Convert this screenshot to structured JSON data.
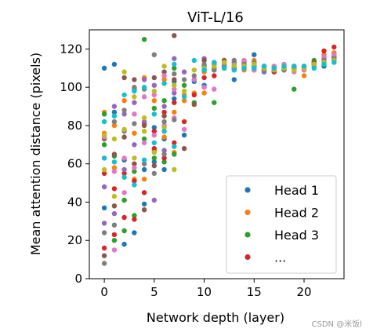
{
  "chart_data": {
    "type": "scatter",
    "title": "ViT-L/16",
    "xlabel": "Network depth (layer)",
    "ylabel": "Mean attention distance (pixels)",
    "xlim": [
      -1.5,
      24.0
    ],
    "ylim": [
      0,
      130
    ],
    "x_ticks": [
      0,
      5,
      10,
      15,
      20
    ],
    "y_ticks": [
      0,
      20,
      40,
      60,
      80,
      100,
      120
    ],
    "grid": false,
    "legend_position": "lower-right",
    "legend": [
      "Head 1",
      "Head 2",
      "Head 3",
      "..."
    ],
    "palette": [
      "#1f77b4",
      "#ff7f0e",
      "#2ca02c",
      "#d62728",
      "#9467bd",
      "#8c564b",
      "#e377c2",
      "#7f7f7f",
      "#bcbd22",
      "#17becf"
    ],
    "series": [
      {
        "name": "Head 1",
        "color": "#1f77b4",
        "points": [
          [
            0,
            110
          ],
          [
            0,
            37
          ],
          [
            1,
            112
          ],
          [
            1,
            87
          ],
          [
            2,
            62
          ],
          [
            2,
            18
          ],
          [
            3,
            99
          ],
          [
            3,
            24
          ],
          [
            4,
            57
          ],
          [
            4,
            39
          ],
          [
            5,
            61
          ],
          [
            5,
            79
          ],
          [
            6,
            73
          ],
          [
            6,
            57
          ],
          [
            7,
            103
          ],
          [
            7,
            94
          ],
          [
            8,
            75
          ],
          [
            9,
            103
          ],
          [
            10,
            111
          ],
          [
            10,
            101
          ],
          [
            11,
            109
          ],
          [
            12,
            110
          ],
          [
            13,
            104
          ],
          [
            14,
            112
          ],
          [
            15,
            117
          ],
          [
            15,
            111
          ],
          [
            16,
            109
          ],
          [
            17,
            108
          ],
          [
            18,
            109
          ],
          [
            19,
            110
          ],
          [
            20,
            109
          ],
          [
            21,
            113
          ],
          [
            22,
            111
          ],
          [
            23,
            118
          ],
          [
            23,
            114
          ]
        ]
      },
      {
        "name": "Head 2",
        "color": "#ff7f0e",
        "points": [
          [
            0,
            87
          ],
          [
            0,
            76
          ],
          [
            1,
            80
          ],
          [
            1,
            58
          ],
          [
            2,
            93
          ],
          [
            2,
            41
          ],
          [
            3,
            52
          ],
          [
            3,
            76
          ],
          [
            4,
            105
          ],
          [
            4,
            52
          ],
          [
            5,
            93
          ],
          [
            5,
            67
          ],
          [
            6,
            104
          ],
          [
            6,
            74
          ],
          [
            7,
            87
          ],
          [
            7,
            66
          ],
          [
            8,
            93
          ],
          [
            8,
            96
          ],
          [
            9,
            97
          ],
          [
            10,
            108
          ],
          [
            10,
            97
          ],
          [
            11,
            113
          ],
          [
            12,
            114
          ],
          [
            13,
            111
          ],
          [
            14,
            109
          ],
          [
            15,
            114
          ],
          [
            16,
            110
          ],
          [
            17,
            109
          ],
          [
            18,
            110
          ],
          [
            19,
            111
          ],
          [
            20,
            106
          ],
          [
            21,
            112
          ],
          [
            22,
            117
          ],
          [
            23,
            114
          ],
          [
            23,
            118
          ]
        ]
      },
      {
        "name": "Head 3",
        "color": "#2ca02c",
        "points": [
          [
            0,
            86
          ],
          [
            0,
            70
          ],
          [
            1,
            20
          ],
          [
            1,
            64
          ],
          [
            2,
            25
          ],
          [
            2,
            41
          ],
          [
            3,
            33
          ],
          [
            3,
            56
          ],
          [
            4,
            125
          ],
          [
            4,
            73
          ],
          [
            5,
            63
          ],
          [
            5,
            89
          ],
          [
            6,
            61
          ],
          [
            6,
            93
          ],
          [
            7,
            65
          ],
          [
            7,
            110
          ],
          [
            8,
            101
          ],
          [
            9,
            92
          ],
          [
            10,
            109
          ],
          [
            11,
            92
          ],
          [
            12,
            111
          ],
          [
            13,
            113
          ],
          [
            14,
            110
          ],
          [
            15,
            112
          ],
          [
            16,
            108
          ],
          [
            17,
            110
          ],
          [
            18,
            111
          ],
          [
            19,
            99
          ],
          [
            20,
            110
          ],
          [
            21,
            114
          ],
          [
            22,
            112
          ],
          [
            23,
            115
          ]
        ]
      },
      {
        "name": "...",
        "color": "#d62728",
        "points": [
          [
            0,
            16
          ],
          [
            0,
            55
          ],
          [
            1,
            23
          ],
          [
            1,
            47
          ],
          [
            2,
            32
          ],
          [
            2,
            55
          ],
          [
            3,
            31
          ],
          [
            3,
            51
          ],
          [
            4,
            45
          ],
          [
            4,
            81
          ],
          [
            5,
            68
          ],
          [
            5,
            77
          ],
          [
            6,
            63
          ],
          [
            6,
            87
          ],
          [
            7,
            71
          ],
          [
            7,
            92
          ],
          [
            8,
            82
          ],
          [
            9,
            96
          ],
          [
            10,
            105
          ],
          [
            11,
            106
          ],
          [
            12,
            112
          ],
          [
            13,
            110
          ],
          [
            14,
            110
          ],
          [
            15,
            109
          ],
          [
            16,
            111
          ],
          [
            17,
            108
          ],
          [
            18,
            110
          ],
          [
            19,
            110
          ],
          [
            20,
            111
          ],
          [
            21,
            112
          ],
          [
            22,
            119
          ],
          [
            23,
            121
          ]
        ]
      },
      {
        "color": "#9467bd",
        "points": [
          [
            0,
            48
          ],
          [
            0,
            29
          ],
          [
            1,
            90
          ],
          [
            1,
            34
          ],
          [
            2,
            57
          ],
          [
            2,
            86
          ],
          [
            3,
            92
          ],
          [
            3,
            70
          ],
          [
            4,
            82
          ],
          [
            4,
            104
          ],
          [
            5,
            41
          ],
          [
            5,
            101
          ],
          [
            6,
            90
          ],
          [
            6,
            67
          ],
          [
            7,
            115
          ],
          [
            7,
            97
          ],
          [
            8,
            108
          ],
          [
            9,
            104
          ],
          [
            10,
            115
          ],
          [
            11,
            110
          ],
          [
            12,
            113
          ],
          [
            13,
            109
          ],
          [
            14,
            111
          ],
          [
            15,
            110
          ],
          [
            16,
            108
          ],
          [
            17,
            111
          ],
          [
            18,
            109
          ],
          [
            19,
            111
          ],
          [
            20,
            110
          ],
          [
            21,
            112
          ],
          [
            22,
            115
          ],
          [
            23,
            116
          ]
        ]
      },
      {
        "color": "#8c564b",
        "points": [
          [
            0,
            12
          ],
          [
            0,
            73
          ],
          [
            1,
            65
          ],
          [
            1,
            38
          ],
          [
            2,
            74
          ],
          [
            2,
            105
          ],
          [
            3,
            104
          ],
          [
            3,
            60
          ],
          [
            4,
            80
          ],
          [
            4,
            36
          ],
          [
            5,
            105
          ],
          [
            5,
            59
          ],
          [
            6,
            108
          ],
          [
            6,
            85
          ],
          [
            7,
            127
          ],
          [
            7,
            104
          ],
          [
            8,
            68
          ],
          [
            9,
            91
          ],
          [
            10,
            114
          ],
          [
            11,
            112
          ],
          [
            12,
            114
          ],
          [
            13,
            110
          ],
          [
            14,
            113
          ],
          [
            15,
            110
          ],
          [
            16,
            111
          ],
          [
            17,
            109
          ],
          [
            18,
            110
          ],
          [
            19,
            111
          ],
          [
            20,
            110
          ],
          [
            21,
            113
          ],
          [
            22,
            113
          ],
          [
            23,
            116
          ]
        ]
      },
      {
        "color": "#e377c2",
        "points": [
          [
            0,
            74
          ],
          [
            0,
            63
          ],
          [
            1,
            56
          ],
          [
            1,
            15
          ],
          [
            2,
            63
          ],
          [
            2,
            45
          ],
          [
            3,
            58
          ],
          [
            3,
            86
          ],
          [
            4,
            71
          ],
          [
            4,
            95
          ],
          [
            5,
            75
          ],
          [
            5,
            96
          ],
          [
            6,
            80
          ],
          [
            6,
            106
          ],
          [
            7,
            84
          ],
          [
            7,
            99
          ],
          [
            8,
            78
          ],
          [
            9,
            104
          ],
          [
            10,
            100
          ],
          [
            11,
            99
          ],
          [
            12,
            112
          ],
          [
            13,
            112
          ],
          [
            14,
            114
          ],
          [
            15,
            109
          ],
          [
            16,
            110
          ],
          [
            17,
            111
          ],
          [
            18,
            112
          ],
          [
            19,
            108
          ],
          [
            20,
            109
          ],
          [
            21,
            112
          ],
          [
            22,
            116
          ],
          [
            23,
            117
          ]
        ]
      },
      {
        "color": "#7f7f7f",
        "points": [
          [
            0,
            8
          ],
          [
            0,
            24
          ],
          [
            1,
            82
          ],
          [
            1,
            28
          ],
          [
            2,
            88
          ],
          [
            2,
            77
          ],
          [
            3,
            81
          ],
          [
            3,
            100
          ],
          [
            4,
            99
          ],
          [
            4,
            60
          ],
          [
            5,
            117
          ],
          [
            5,
            55
          ],
          [
            6,
            82
          ],
          [
            6,
            65
          ],
          [
            7,
            83
          ],
          [
            7,
            107
          ],
          [
            8,
            104
          ],
          [
            9,
            106
          ],
          [
            10,
            112
          ],
          [
            11,
            109
          ],
          [
            12,
            111
          ],
          [
            13,
            114
          ],
          [
            14,
            112
          ],
          [
            15,
            113
          ],
          [
            16,
            109
          ],
          [
            17,
            110
          ],
          [
            18,
            109
          ],
          [
            19,
            110
          ],
          [
            20,
            111
          ],
          [
            21,
            111
          ],
          [
            22,
            114
          ],
          [
            23,
            115
          ]
        ]
      },
      {
        "color": "#bcbd22",
        "points": [
          [
            0,
            75
          ],
          [
            0,
            57
          ],
          [
            1,
            73
          ],
          [
            1,
            43
          ],
          [
            2,
            78
          ],
          [
            2,
            108
          ],
          [
            3,
            95
          ],
          [
            3,
            63
          ],
          [
            4,
            77
          ],
          [
            4,
            84
          ],
          [
            5,
            66
          ],
          [
            5,
            98
          ],
          [
            6,
            111
          ],
          [
            6,
            79
          ],
          [
            7,
            101
          ],
          [
            7,
            57
          ],
          [
            8,
            98
          ],
          [
            9,
            109
          ],
          [
            10,
            110
          ],
          [
            11,
            111
          ],
          [
            12,
            113
          ],
          [
            13,
            111
          ],
          [
            14,
            111
          ],
          [
            15,
            112
          ],
          [
            16,
            110
          ],
          [
            17,
            109
          ],
          [
            18,
            110
          ],
          [
            19,
            109
          ],
          [
            20,
            110
          ],
          [
            21,
            112
          ],
          [
            22,
            113
          ],
          [
            23,
            114
          ]
        ]
      },
      {
        "color": "#17becf",
        "points": [
          [
            0,
            63
          ],
          [
            0,
            82
          ],
          [
            1,
            85
          ],
          [
            1,
            61
          ],
          [
            2,
            96
          ],
          [
            2,
            53
          ],
          [
            3,
            49
          ],
          [
            3,
            98
          ],
          [
            4,
            62
          ],
          [
            4,
            100
          ],
          [
            5,
            71
          ],
          [
            5,
            86
          ],
          [
            6,
            102
          ],
          [
            6,
            77
          ],
          [
            7,
            69
          ],
          [
            7,
            112
          ],
          [
            8,
            95
          ],
          [
            9,
            114
          ],
          [
            10,
            109
          ],
          [
            11,
            113
          ],
          [
            12,
            110
          ],
          [
            13,
            109
          ],
          [
            14,
            110
          ],
          [
            15,
            110
          ],
          [
            16,
            111
          ],
          [
            17,
            110
          ],
          [
            18,
            111
          ],
          [
            19,
            111
          ],
          [
            20,
            111
          ],
          [
            21,
            110
          ],
          [
            22,
            112
          ],
          [
            23,
            113
          ]
        ]
      }
    ]
  },
  "watermark": "CSDN @米饭l"
}
